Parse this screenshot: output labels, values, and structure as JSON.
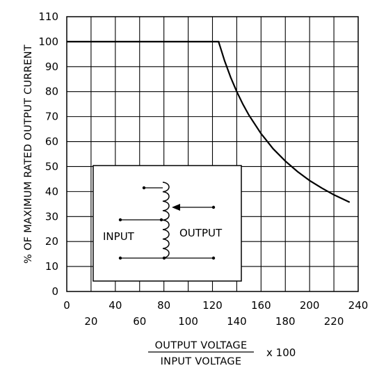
{
  "chart_data": {
    "type": "line",
    "title": "",
    "ylabel": "% OF MAXIMUM RATED OUTPUT CURRENT",
    "xlabel": {
      "numerator": "OUTPUT VOLTAGE",
      "denominator": "INPUT VOLTAGE",
      "multiplier": "x 100"
    },
    "xlim": [
      0,
      240
    ],
    "ylim": [
      0,
      110
    ],
    "x_ticks_major": [
      "0",
      "40",
      "80",
      "120",
      "160",
      "200",
      "240"
    ],
    "x_ticks_minor": [
      "20",
      "60",
      "100",
      "140",
      "180",
      "220"
    ],
    "y_ticks": [
      "0",
      "10",
      "20",
      "30",
      "40",
      "50",
      "60",
      "70",
      "80",
      "90",
      "100",
      "110"
    ],
    "grid": true,
    "series": [
      {
        "x": [
          0,
          125,
          126,
          130,
          135,
          140,
          145,
          150,
          160,
          170,
          180,
          190,
          200,
          210,
          220,
          233
        ],
        "y": [
          100,
          100,
          98.5,
          92.3,
          85.7,
          80.0,
          75.0,
          70.6,
          63.2,
          57.1,
          52.2,
          48.0,
          44.4,
          41.4,
          38.7,
          35.7
        ]
      }
    ],
    "inset": {
      "input_label": "INPUT",
      "output_label": "OUTPUT"
    }
  }
}
